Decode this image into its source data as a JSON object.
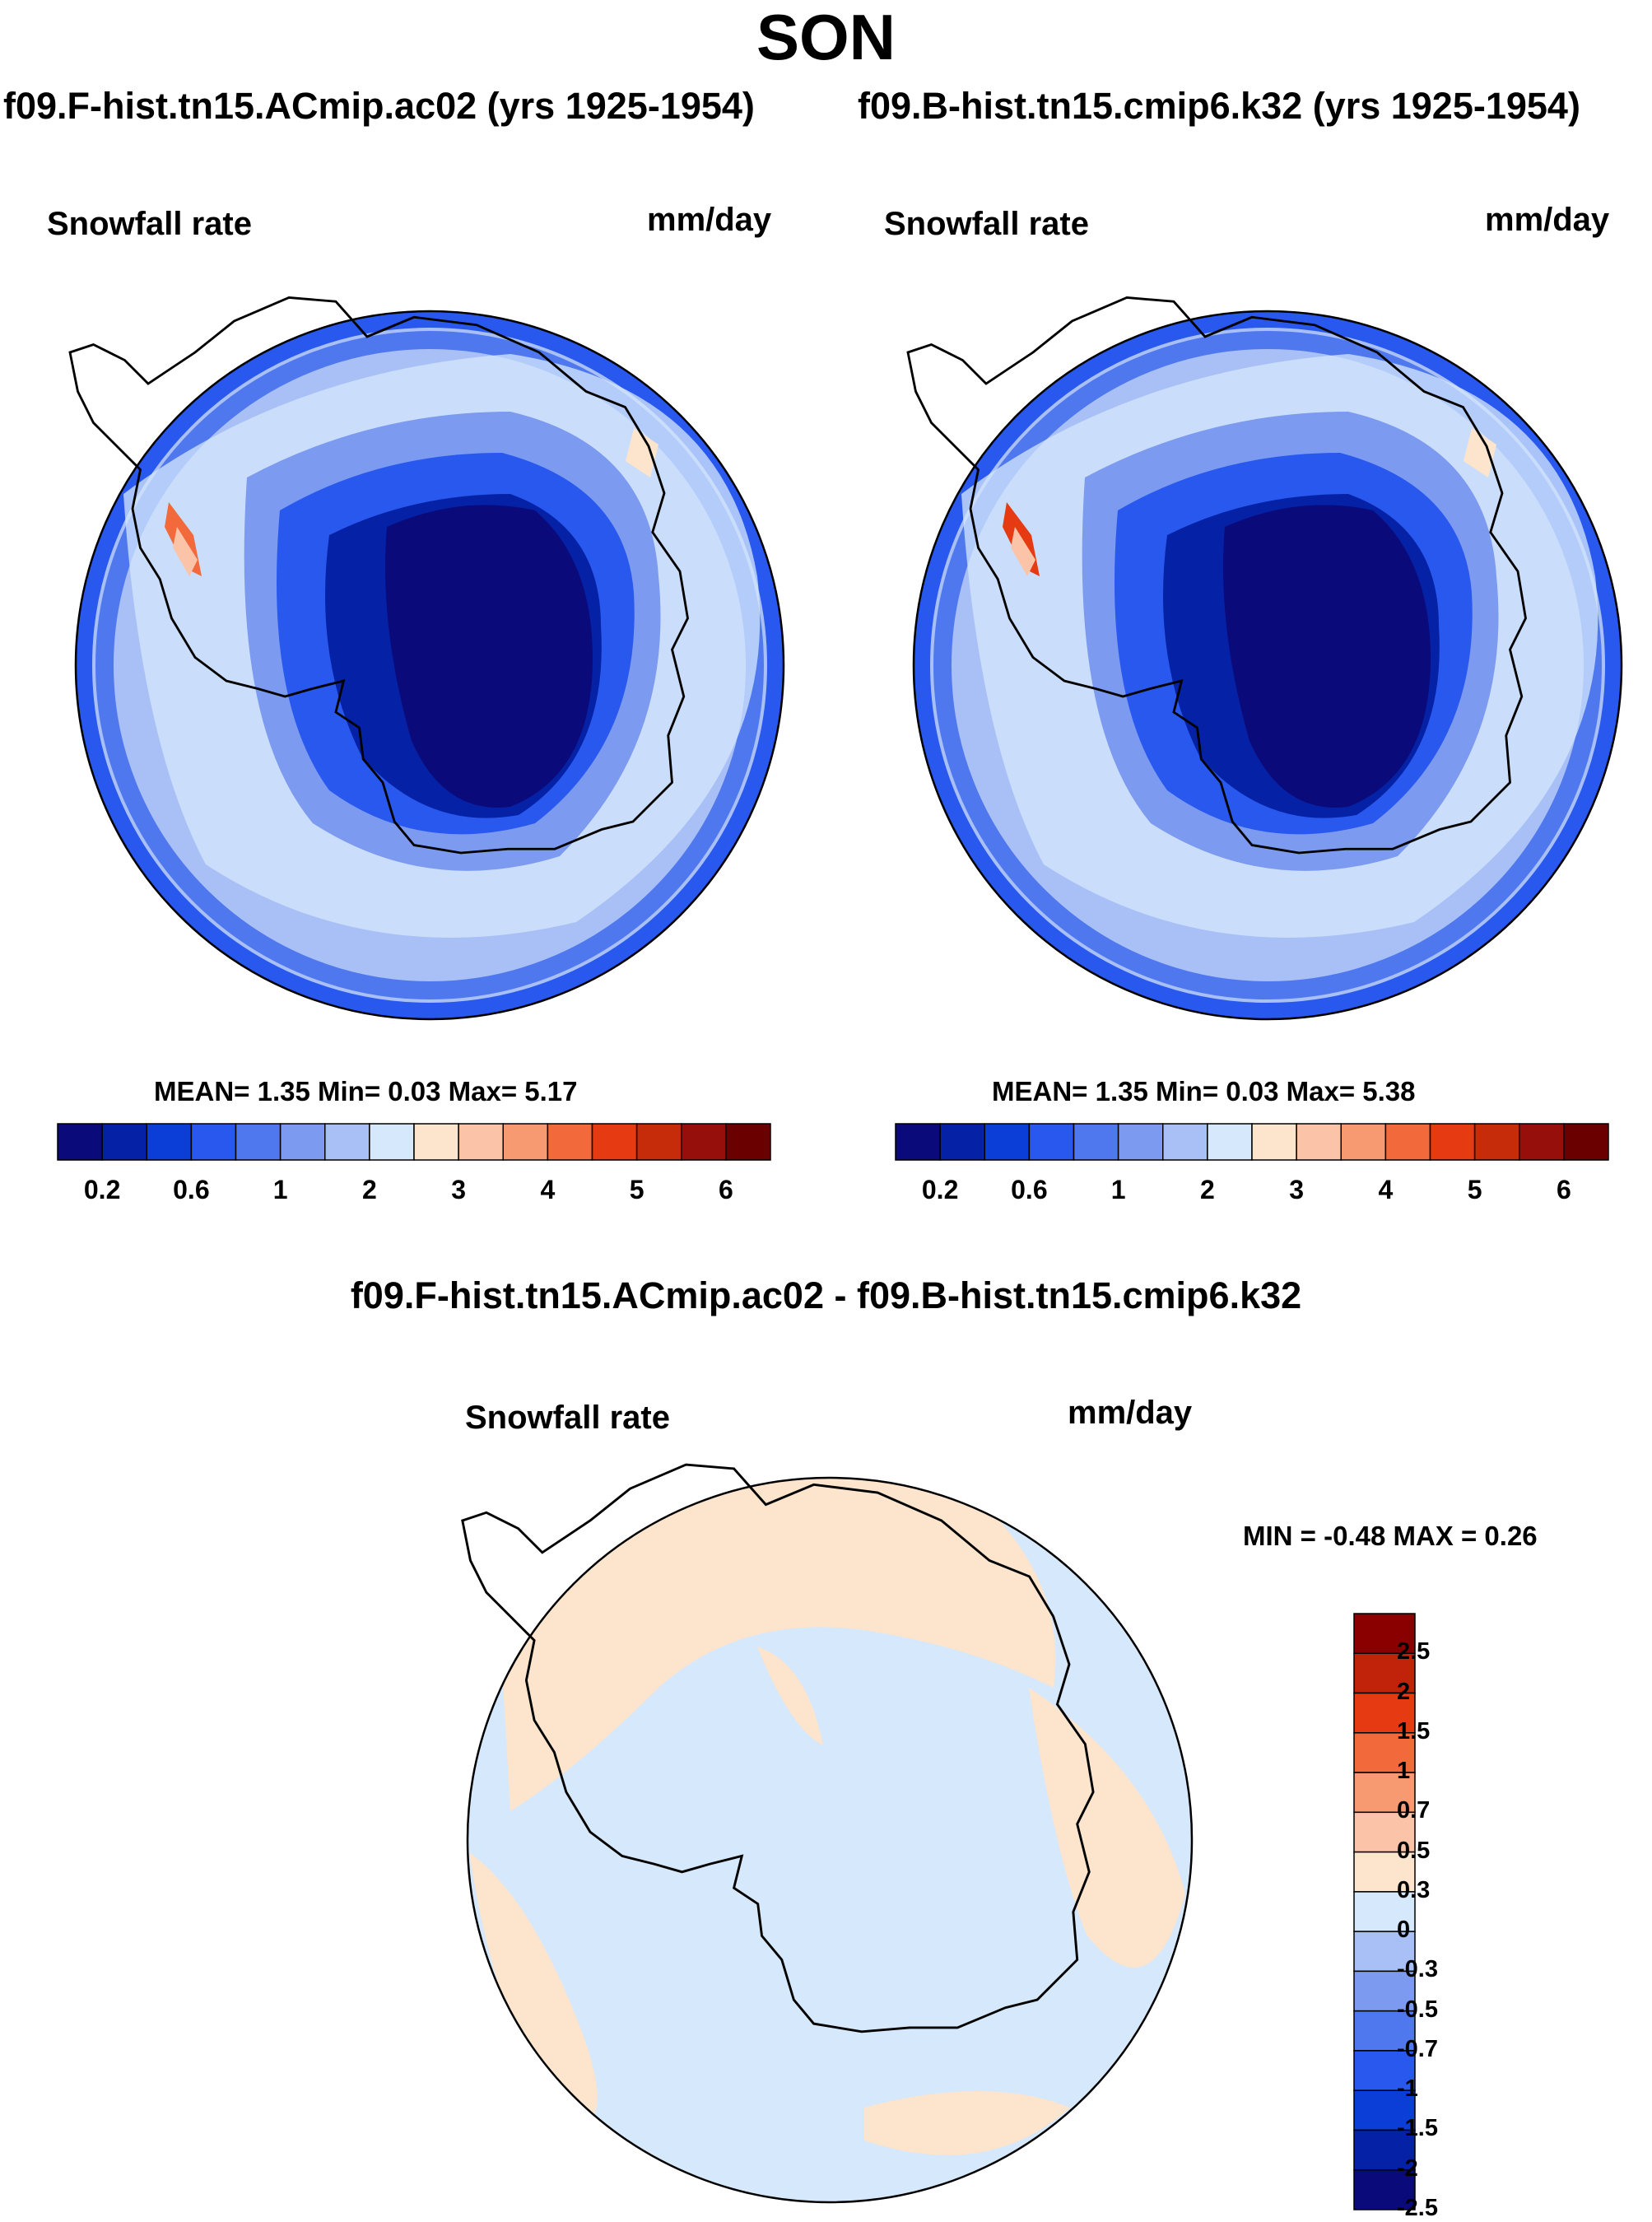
{
  "title": "SON",
  "panels": [
    {
      "case": "f09.F-hist.tn15.ACmip.ac02 (yrs 1925-1954)",
      "variable": "Snowfall rate",
      "units": "mm/day",
      "stats": "MEAN=   1.35  Min=   0.03  Max=   5.17"
    },
    {
      "case": "f09.B-hist.tn15.cmip6.k32 (yrs 1925-1954)",
      "variable": "Snowfall rate",
      "units": "mm/day",
      "stats": "MEAN=   1.35  Min=   0.03  Max=   5.38"
    }
  ],
  "colorbar": {
    "colors": [
      "#0a0a7a",
      "#0522a6",
      "#0a3ed6",
      "#2958ee",
      "#5078ee",
      "#7c9af0",
      "#a9c0f7",
      "#d6e8fc",
      "#fde4cc",
      "#fbc4a8",
      "#f79a72",
      "#f26a3c",
      "#e63a12",
      "#c62c0a",
      "#960f0a",
      "#6a0000"
    ],
    "labels": [
      "0.2",
      "0.6",
      "1",
      "2",
      "3",
      "4",
      "5",
      "6"
    ]
  },
  "difference": {
    "title": "f09.F-hist.tn15.ACmip.ac02 - f09.B-hist.tn15.cmip6.k32",
    "variable": "Snowfall rate",
    "units": "mm/day",
    "minmax": "MIN =  -0.48 MAX =   0.26",
    "colors": [
      "#8a0000",
      "#c0230a",
      "#e63a12",
      "#f26a3c",
      "#f79a72",
      "#fbc4a8",
      "#fde4cc",
      "#d6e8fc",
      "#a9c0f7",
      "#7c9af0",
      "#5078ee",
      "#2958ee",
      "#0a3ed6",
      "#0522a6",
      "#0a0a7a"
    ],
    "labels": [
      "2.5",
      "2",
      "1.5",
      "1",
      "0.7",
      "0.5",
      "0.3",
      "0",
      "-0.3",
      "-0.5",
      "-0.7",
      "-1",
      "-1.5",
      "-2",
      "-2.5"
    ]
  }
}
